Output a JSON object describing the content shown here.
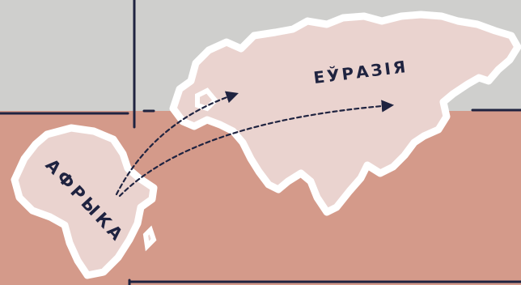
{
  "map": {
    "labels": {
      "africa": "АФРЫКА",
      "eurasia": "ЕЎРАЗІЯ"
    },
    "colors": {
      "background_top": "#cfcfcd",
      "background_bottom": "#d49a8a",
      "land_fill": "#ead3cf",
      "coast_outline": "#ffffff",
      "ink": "#1f2340"
    }
  }
}
